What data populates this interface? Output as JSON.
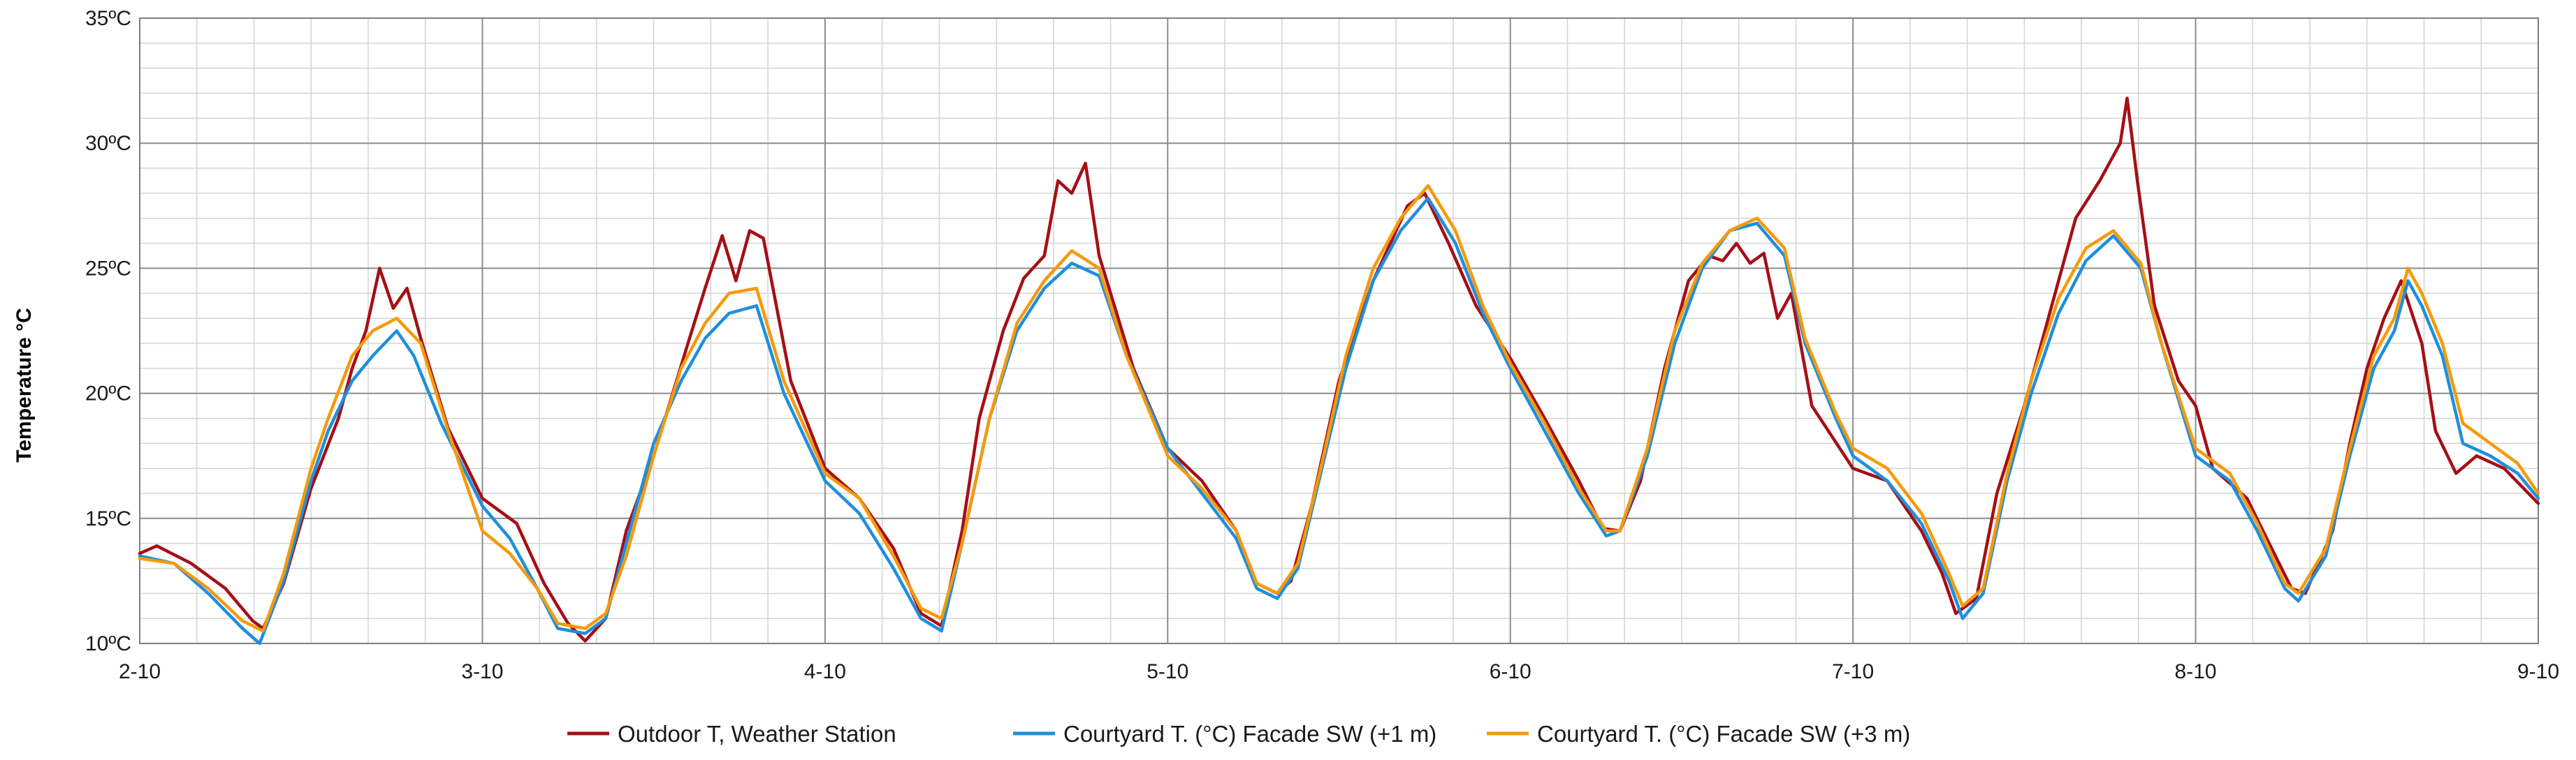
{
  "chart_data": {
    "type": "line",
    "ylabel": "Temperature °C",
    "xlabel": "",
    "xlim": [
      0,
      7
    ],
    "ylim": [
      10,
      35
    ],
    "x_ticks": [
      {
        "x": 0,
        "label": "2-10"
      },
      {
        "x": 1,
        "label": "3-10"
      },
      {
        "x": 2,
        "label": "4-10"
      },
      {
        "x": 3,
        "label": "5-10"
      },
      {
        "x": 4,
        "label": "6-10"
      },
      {
        "x": 5,
        "label": "7-10"
      },
      {
        "x": 6,
        "label": "8-10"
      },
      {
        "x": 7,
        "label": "9-10"
      }
    ],
    "y_ticks": [
      {
        "y": 10,
        "label": "10ºC"
      },
      {
        "y": 15,
        "label": "15ºC"
      },
      {
        "y": 20,
        "label": "20ºC"
      },
      {
        "y": 25,
        "label": "25ºC"
      },
      {
        "y": 30,
        "label": "30ºC"
      },
      {
        "y": 35,
        "label": "35ºC"
      }
    ],
    "grid": true,
    "legend_position": "bottom",
    "series": [
      {
        "name": "Outdoor T, Weather Station",
        "color": "#a50f15",
        "points": [
          [
            0,
            13.6
          ],
          [
            0.05,
            13.9
          ],
          [
            0.15,
            13.2
          ],
          [
            0.25,
            12.2
          ],
          [
            0.33,
            10.9
          ],
          [
            0.36,
            10.6
          ],
          [
            0.42,
            12.4
          ],
          [
            0.5,
            16.2
          ],
          [
            0.58,
            19.0
          ],
          [
            0.62,
            21.0
          ],
          [
            0.66,
            22.5
          ],
          [
            0.7,
            25.0
          ],
          [
            0.74,
            23.4
          ],
          [
            0.78,
            24.2
          ],
          [
            0.82,
            22.2
          ],
          [
            0.9,
            18.6
          ],
          [
            1,
            15.8
          ],
          [
            1.1,
            14.8
          ],
          [
            1.18,
            12.4
          ],
          [
            1.25,
            10.8
          ],
          [
            1.3,
            10.1
          ],
          [
            1.36,
            11.0
          ],
          [
            1.42,
            14.5
          ],
          [
            1.5,
            17.5
          ],
          [
            1.6,
            22.0
          ],
          [
            1.65,
            24.2
          ],
          [
            1.7,
            26.3
          ],
          [
            1.74,
            24.5
          ],
          [
            1.78,
            26.5
          ],
          [
            1.82,
            26.2
          ],
          [
            1.9,
            20.5
          ],
          [
            2,
            17.0
          ],
          [
            2.1,
            15.8
          ],
          [
            2.2,
            13.8
          ],
          [
            2.28,
            11.2
          ],
          [
            2.34,
            10.7
          ],
          [
            2.4,
            14.5
          ],
          [
            2.45,
            19.0
          ],
          [
            2.52,
            22.5
          ],
          [
            2.58,
            24.6
          ],
          [
            2.64,
            25.5
          ],
          [
            2.68,
            28.5
          ],
          [
            2.72,
            28.0
          ],
          [
            2.76,
            29.2
          ],
          [
            2.8,
            25.5
          ],
          [
            2.9,
            21.0
          ],
          [
            3,
            17.8
          ],
          [
            3.1,
            16.5
          ],
          [
            3.2,
            14.5
          ],
          [
            3.26,
            12.4
          ],
          [
            3.32,
            12.0
          ],
          [
            3.36,
            12.5
          ],
          [
            3.42,
            15.5
          ],
          [
            3.5,
            20.5
          ],
          [
            3.6,
            24.5
          ],
          [
            3.7,
            27.5
          ],
          [
            3.75,
            28.0
          ],
          [
            3.82,
            26.0
          ],
          [
            3.9,
            23.5
          ],
          [
            4,
            21.4
          ],
          [
            4.1,
            19.0
          ],
          [
            4.2,
            16.5
          ],
          [
            4.27,
            14.6
          ],
          [
            4.32,
            14.5
          ],
          [
            4.38,
            16.5
          ],
          [
            4.45,
            21.0
          ],
          [
            4.52,
            24.5
          ],
          [
            4.58,
            25.5
          ],
          [
            4.62,
            25.3
          ],
          [
            4.66,
            26.0
          ],
          [
            4.7,
            25.2
          ],
          [
            4.74,
            25.6
          ],
          [
            4.78,
            23.0
          ],
          [
            4.82,
            24.0
          ],
          [
            4.88,
            19.5
          ],
          [
            5,
            17.0
          ],
          [
            5.1,
            16.5
          ],
          [
            5.2,
            14.5
          ],
          [
            5.26,
            12.8
          ],
          [
            5.3,
            11.2
          ],
          [
            5.36,
            11.8
          ],
          [
            5.42,
            16.0
          ],
          [
            5.5,
            19.5
          ],
          [
            5.58,
            23.5
          ],
          [
            5.65,
            27.0
          ],
          [
            5.72,
            28.5
          ],
          [
            5.78,
            30.0
          ],
          [
            5.8,
            31.8
          ],
          [
            5.83,
            28.5
          ],
          [
            5.88,
            23.5
          ],
          [
            5.95,
            20.5
          ],
          [
            6,
            19.5
          ],
          [
            6.05,
            17.0
          ],
          [
            6.15,
            15.8
          ],
          [
            6.2,
            14.4
          ],
          [
            6.28,
            12.2
          ],
          [
            6.32,
            12.0
          ],
          [
            6.4,
            14.5
          ],
          [
            6.45,
            18.0
          ],
          [
            6.5,
            21.0
          ],
          [
            6.55,
            23.0
          ],
          [
            6.6,
            24.5
          ],
          [
            6.66,
            22.0
          ],
          [
            6.7,
            18.5
          ],
          [
            6.76,
            16.8
          ],
          [
            6.82,
            17.5
          ],
          [
            6.9,
            17.0
          ],
          [
            7,
            15.6
          ]
        ]
      },
      {
        "name": "Courtyard T. (°C) Facade SW (+1 m)",
        "color": "#1f8fdc",
        "points": [
          [
            0,
            13.5
          ],
          [
            0.1,
            13.2
          ],
          [
            0.2,
            12.0
          ],
          [
            0.3,
            10.6
          ],
          [
            0.35,
            10.0
          ],
          [
            0.42,
            12.5
          ],
          [
            0.5,
            16.5
          ],
          [
            0.55,
            18.5
          ],
          [
            0.62,
            20.5
          ],
          [
            0.68,
            21.5
          ],
          [
            0.75,
            22.5
          ],
          [
            0.8,
            21.5
          ],
          [
            0.88,
            18.8
          ],
          [
            1,
            15.5
          ],
          [
            1.08,
            14.2
          ],
          [
            1.16,
            12.2
          ],
          [
            1.22,
            10.6
          ],
          [
            1.3,
            10.4
          ],
          [
            1.36,
            11.0
          ],
          [
            1.42,
            14.0
          ],
          [
            1.5,
            18.0
          ],
          [
            1.58,
            20.5
          ],
          [
            1.65,
            22.2
          ],
          [
            1.72,
            23.2
          ],
          [
            1.8,
            23.5
          ],
          [
            1.88,
            20.0
          ],
          [
            2,
            16.5
          ],
          [
            2.1,
            15.2
          ],
          [
            2.2,
            13.0
          ],
          [
            2.28,
            11.0
          ],
          [
            2.34,
            10.5
          ],
          [
            2.4,
            14.0
          ],
          [
            2.48,
            19.0
          ],
          [
            2.56,
            22.5
          ],
          [
            2.64,
            24.2
          ],
          [
            2.72,
            25.2
          ],
          [
            2.8,
            24.7
          ],
          [
            2.88,
            21.5
          ],
          [
            3,
            17.8
          ],
          [
            3.1,
            16.0
          ],
          [
            3.2,
            14.2
          ],
          [
            3.26,
            12.2
          ],
          [
            3.32,
            11.8
          ],
          [
            3.38,
            13.0
          ],
          [
            3.45,
            17.0
          ],
          [
            3.52,
            21.0
          ],
          [
            3.6,
            24.5
          ],
          [
            3.68,
            26.5
          ],
          [
            3.76,
            27.8
          ],
          [
            3.84,
            26.0
          ],
          [
            3.92,
            23.2
          ],
          [
            4,
            21.0
          ],
          [
            4.1,
            18.5
          ],
          [
            4.2,
            16.0
          ],
          [
            4.28,
            14.3
          ],
          [
            4.32,
            14.5
          ],
          [
            4.4,
            17.5
          ],
          [
            4.48,
            22.0
          ],
          [
            4.56,
            25.0
          ],
          [
            4.64,
            26.5
          ],
          [
            4.72,
            26.8
          ],
          [
            4.8,
            25.5
          ],
          [
            4.86,
            22.0
          ],
          [
            4.95,
            19.0
          ],
          [
            5,
            17.5
          ],
          [
            5.1,
            16.5
          ],
          [
            5.2,
            14.8
          ],
          [
            5.28,
            12.5
          ],
          [
            5.32,
            11.0
          ],
          [
            5.38,
            12.0
          ],
          [
            5.45,
            16.5
          ],
          [
            5.52,
            20.0
          ],
          [
            5.6,
            23.2
          ],
          [
            5.68,
            25.3
          ],
          [
            5.76,
            26.3
          ],
          [
            5.84,
            25.0
          ],
          [
            5.9,
            22.0
          ],
          [
            6,
            17.5
          ],
          [
            6.1,
            16.5
          ],
          [
            6.18,
            14.5
          ],
          [
            6.26,
            12.2
          ],
          [
            6.3,
            11.7
          ],
          [
            6.38,
            13.5
          ],
          [
            6.45,
            17.5
          ],
          [
            6.52,
            21.0
          ],
          [
            6.58,
            22.5
          ],
          [
            6.62,
            24.5
          ],
          [
            6.66,
            23.5
          ],
          [
            6.72,
            21.5
          ],
          [
            6.78,
            18.0
          ],
          [
            6.86,
            17.5
          ],
          [
            6.94,
            16.8
          ],
          [
            7,
            15.8
          ]
        ]
      },
      {
        "name": "Courtyard T. (°C) Facade SW (+3 m)",
        "color": "#f59a0c",
        "points": [
          [
            0,
            13.4
          ],
          [
            0.1,
            13.2
          ],
          [
            0.2,
            12.2
          ],
          [
            0.3,
            10.9
          ],
          [
            0.36,
            10.5
          ],
          [
            0.42,
            12.8
          ],
          [
            0.5,
            17.0
          ],
          [
            0.55,
            19.0
          ],
          [
            0.62,
            21.5
          ],
          [
            0.68,
            22.5
          ],
          [
            0.75,
            23.0
          ],
          [
            0.82,
            22.0
          ],
          [
            0.9,
            18.5
          ],
          [
            1,
            14.5
          ],
          [
            1.08,
            13.6
          ],
          [
            1.16,
            12.2
          ],
          [
            1.22,
            10.8
          ],
          [
            1.3,
            10.6
          ],
          [
            1.36,
            11.2
          ],
          [
            1.42,
            13.5
          ],
          [
            1.5,
            17.5
          ],
          [
            1.58,
            21.0
          ],
          [
            1.65,
            22.8
          ],
          [
            1.72,
            24.0
          ],
          [
            1.8,
            24.2
          ],
          [
            1.88,
            20.5
          ],
          [
            2,
            16.8
          ],
          [
            2.1,
            15.8
          ],
          [
            2.2,
            13.5
          ],
          [
            2.28,
            11.4
          ],
          [
            2.34,
            11.0
          ],
          [
            2.4,
            14.0
          ],
          [
            2.48,
            19.0
          ],
          [
            2.56,
            22.8
          ],
          [
            2.64,
            24.5
          ],
          [
            2.72,
            25.7
          ],
          [
            2.8,
            25.0
          ],
          [
            2.88,
            21.5
          ],
          [
            3,
            17.5
          ],
          [
            3.1,
            16.2
          ],
          [
            3.2,
            14.5
          ],
          [
            3.26,
            12.4
          ],
          [
            3.32,
            12.0
          ],
          [
            3.38,
            13.2
          ],
          [
            3.45,
            17.2
          ],
          [
            3.52,
            21.5
          ],
          [
            3.6,
            25.0
          ],
          [
            3.68,
            27.0
          ],
          [
            3.76,
            28.3
          ],
          [
            3.84,
            26.5
          ],
          [
            3.92,
            23.5
          ],
          [
            4,
            21.2
          ],
          [
            4.1,
            18.8
          ],
          [
            4.2,
            16.2
          ],
          [
            4.28,
            14.5
          ],
          [
            4.32,
            14.5
          ],
          [
            4.4,
            17.8
          ],
          [
            4.48,
            22.5
          ],
          [
            4.56,
            25.2
          ],
          [
            4.64,
            26.5
          ],
          [
            4.72,
            27.0
          ],
          [
            4.8,
            25.8
          ],
          [
            4.86,
            22.2
          ],
          [
            4.95,
            19.2
          ],
          [
            5,
            17.8
          ],
          [
            5.1,
            17.0
          ],
          [
            5.2,
            15.2
          ],
          [
            5.28,
            12.8
          ],
          [
            5.32,
            11.5
          ],
          [
            5.38,
            12.2
          ],
          [
            5.45,
            16.8
          ],
          [
            5.52,
            20.5
          ],
          [
            5.6,
            23.8
          ],
          [
            5.68,
            25.8
          ],
          [
            5.76,
            26.5
          ],
          [
            5.84,
            25.2
          ],
          [
            5.9,
            22.0
          ],
          [
            6,
            17.8
          ],
          [
            6.1,
            16.8
          ],
          [
            6.18,
            14.8
          ],
          [
            6.26,
            12.4
          ],
          [
            6.3,
            12.0
          ],
          [
            6.38,
            13.8
          ],
          [
            6.45,
            17.8
          ],
          [
            6.52,
            21.5
          ],
          [
            6.58,
            23.0
          ],
          [
            6.62,
            25.0
          ],
          [
            6.66,
            24.0
          ],
          [
            6.72,
            22.0
          ],
          [
            6.78,
            18.8
          ],
          [
            6.86,
            18.0
          ],
          [
            6.94,
            17.2
          ],
          [
            7,
            16.0
          ]
        ]
      }
    ]
  }
}
